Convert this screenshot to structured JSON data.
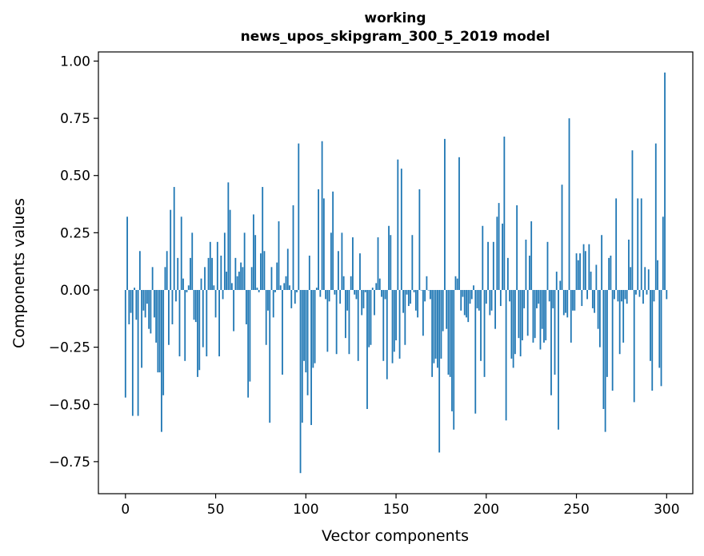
{
  "chart_data": {
    "type": "bar",
    "title_line1": "working",
    "title_line2": "news_upos_skipgram_300_5_2019 model",
    "xlabel": "Vector components",
    "ylabel": "Components values",
    "xlim": [
      -15,
      314.5
    ],
    "ylim": [
      -0.89,
      1.04
    ],
    "xticks": [
      0,
      50,
      100,
      150,
      200,
      250,
      300
    ],
    "xtick_labels": [
      "0",
      "50",
      "100",
      "150",
      "200",
      "250",
      "300"
    ],
    "yticks": [
      -0.75,
      -0.5,
      -0.25,
      0.0,
      0.25,
      0.5,
      0.75,
      1.0
    ],
    "ytick_labels": [
      "−0.75",
      "−0.50",
      "−0.25",
      "0.00",
      "0.25",
      "0.50",
      "0.75",
      "1.00"
    ],
    "bar_color": "#1f77b4",
    "values": [
      -0.47,
      0.32,
      -0.15,
      -0.1,
      -0.55,
      0.01,
      -0.13,
      -0.55,
      0.17,
      -0.34,
      -0.09,
      -0.12,
      -0.06,
      -0.17,
      -0.19,
      0.1,
      -0.12,
      -0.23,
      -0.36,
      -0.36,
      -0.62,
      -0.46,
      0.1,
      0.17,
      -0.24,
      0.35,
      -0.15,
      0.45,
      -0.05,
      0.14,
      -0.29,
      0.32,
      0.05,
      -0.31,
      -0.01,
      0.02,
      0.14,
      0.25,
      -0.13,
      -0.14,
      -0.38,
      -0.35,
      0.05,
      -0.25,
      0.1,
      -0.29,
      0.14,
      0.21,
      0.14,
      0.02,
      -0.12,
      0.21,
      -0.29,
      0.15,
      -0.04,
      0.25,
      0.08,
      0.47,
      0.35,
      0.03,
      -0.18,
      0.14,
      0.06,
      0.08,
      0.12,
      0.1,
      0.25,
      -0.15,
      -0.47,
      -0.4,
      0.1,
      0.33,
      0.24,
      0.01,
      -0.01,
      0.16,
      0.45,
      0.17,
      -0.24,
      -0.09,
      -0.58,
      0.1,
      -0.12,
      -0.01,
      0.12,
      0.3,
      0.02,
      -0.37,
      0.03,
      0.06,
      0.18,
      0.02,
      -0.08,
      0.37,
      -0.06,
      -0.01,
      0.64,
      -0.8,
      -0.58,
      -0.31,
      -0.36,
      -0.46,
      0.15,
      -0.59,
      -0.34,
      -0.32,
      0.01,
      0.44,
      -0.03,
      0.65,
      0.4,
      -0.04,
      -0.27,
      -0.05,
      0.25,
      0.43,
      -0.02,
      -0.28,
      0.17,
      -0.06,
      0.25,
      0.06,
      -0.21,
      -0.09,
      -0.28,
      0.06,
      0.23,
      -0.02,
      -0.04,
      -0.31,
      0.16,
      -0.11,
      -0.08,
      -0.01,
      -0.52,
      -0.25,
      -0.24,
      0.01,
      -0.11,
      0.03,
      0.23,
      0.05,
      -0.03,
      -0.31,
      -0.04,
      -0.39,
      0.28,
      0.24,
      -0.32,
      -0.27,
      -0.22,
      0.57,
      -0.3,
      0.53,
      -0.1,
      -0.24,
      -0.02,
      -0.07,
      -0.06,
      0.24,
      -0.01,
      -0.09,
      -0.12,
      0.44,
      0.0,
      -0.2,
      -0.05,
      0.06,
      0.0,
      -0.04,
      -0.38,
      -0.32,
      -0.3,
      -0.34,
      -0.71,
      -0.3,
      -0.18,
      0.66,
      -0.17,
      -0.37,
      -0.38,
      -0.53,
      -0.61,
      0.06,
      0.05,
      0.58,
      -0.09,
      -0.03,
      -0.11,
      -0.12,
      -0.14,
      -0.06,
      -0.04,
      0.02,
      -0.54,
      -0.08,
      -0.09,
      -0.31,
      0.28,
      -0.38,
      -0.06,
      0.21,
      -0.11,
      -0.09,
      0.21,
      -0.17,
      0.32,
      0.38,
      -0.07,
      0.29,
      0.67,
      -0.57,
      0.14,
      -0.05,
      -0.3,
      -0.34,
      -0.28,
      0.37,
      -0.21,
      -0.29,
      -0.22,
      -0.08,
      0.22,
      -0.2,
      0.15,
      0.3,
      -0.23,
      -0.21,
      -0.08,
      -0.06,
      -0.26,
      -0.17,
      -0.23,
      -0.22,
      0.21,
      -0.05,
      -0.46,
      -0.08,
      -0.37,
      0.08,
      -0.61,
      0.04,
      0.46,
      -0.11,
      -0.1,
      -0.12,
      0.75,
      -0.23,
      -0.09,
      -0.09,
      0.16,
      0.13,
      0.16,
      -0.07,
      0.2,
      0.17,
      -0.04,
      0.2,
      0.08,
      -0.08,
      -0.1,
      0.11,
      -0.17,
      -0.25,
      0.24,
      -0.52,
      -0.62,
      -0.38,
      0.14,
      0.15,
      -0.44,
      -0.04,
      0.4,
      -0.05,
      -0.28,
      -0.05,
      -0.23,
      -0.04,
      -0.06,
      0.22,
      0.1,
      0.61,
      -0.49,
      -0.02,
      0.4,
      -0.03,
      0.4,
      -0.06,
      0.1,
      -0.02,
      0.09,
      -0.31,
      -0.44,
      -0.05,
      0.64,
      0.13,
      -0.34,
      -0.42,
      0.32,
      0.95,
      -0.04
    ]
  }
}
